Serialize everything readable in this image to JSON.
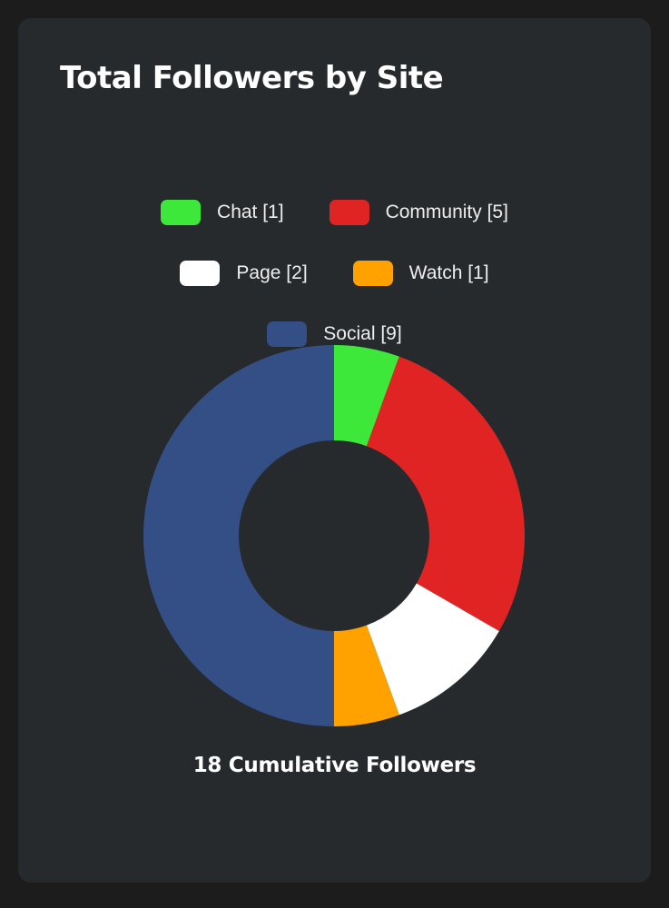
{
  "chart_data": {
    "type": "pie",
    "variant": "donut",
    "title": "Total Followers by Site",
    "legend_position": "top",
    "categories": [
      "Chat",
      "Community",
      "Page",
      "Watch",
      "Social"
    ],
    "values": [
      1,
      5,
      2,
      1,
      9
    ],
    "legend_labels": [
      "Chat [1]",
      "Community [5]",
      "Page [2]",
      "Watch [1]",
      "Social [9]"
    ],
    "colors": [
      "#3de83a",
      "#e02424",
      "#ffffff",
      "#ffa200",
      "#344f86"
    ],
    "footer": "18 Cumulative Followers"
  }
}
